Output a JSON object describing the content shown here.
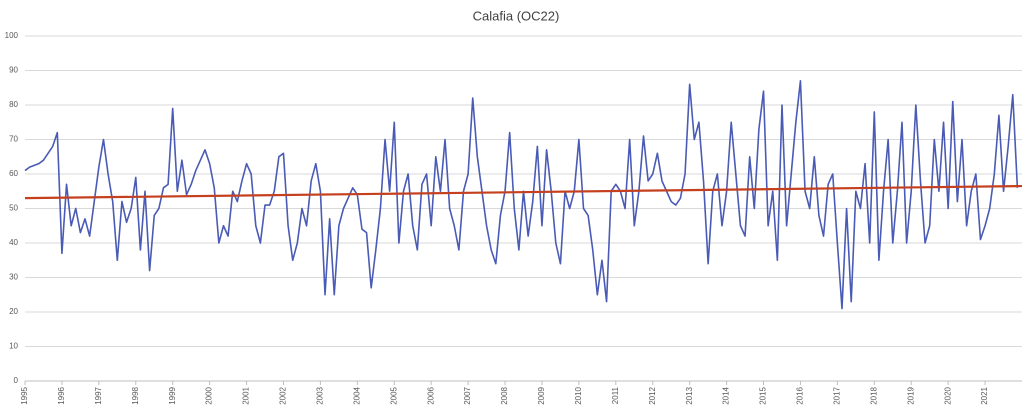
{
  "chart_data": {
    "type": "line",
    "title": "Calafia (OC22)",
    "xlim": [
      1995,
      2022
    ],
    "xticks": [
      1995,
      1996,
      1997,
      1998,
      1999,
      2000,
      2001,
      2002,
      2003,
      2004,
      2005,
      2006,
      2007,
      2008,
      2009,
      2010,
      2011,
      2012,
      2013,
      2014,
      2015,
      2016,
      2017,
      2018,
      2019,
      2020,
      2021
    ],
    "ylim": [
      0,
      100
    ],
    "yticks": [
      0,
      10,
      20,
      30,
      40,
      50,
      60,
      70,
      80,
      90,
      100
    ],
    "grid": true,
    "series": [
      {
        "color": "#4a5bb5",
        "x": [
          1995,
          1995.125,
          1995.25,
          1995.375,
          1995.5,
          1995.625,
          1995.75,
          1995.875,
          1996,
          1996.125,
          1996.25,
          1996.375,
          1996.5,
          1996.625,
          1996.75,
          1996.875,
          1997,
          1997.125,
          1997.25,
          1997.375,
          1997.5,
          1997.625,
          1997.75,
          1997.875,
          1998,
          1998.125,
          1998.25,
          1998.375,
          1998.5,
          1998.625,
          1998.75,
          1998.875,
          1999,
          1999.125,
          1999.25,
          1999.375,
          1999.5,
          1999.625,
          1999.75,
          1999.875,
          2000,
          2000.125,
          2000.25,
          2000.375,
          2000.5,
          2000.625,
          2000.75,
          2000.875,
          2001,
          2001.125,
          2001.25,
          2001.375,
          2001.5,
          2001.625,
          2001.75,
          2001.875,
          2002,
          2002.125,
          2002.25,
          2002.375,
          2002.5,
          2002.625,
          2002.75,
          2002.875,
          2003,
          2003.125,
          2003.25,
          2003.375,
          2003.5,
          2003.625,
          2003.75,
          2003.875,
          2004,
          2004.125,
          2004.25,
          2004.375,
          2004.5,
          2004.625,
          2004.75,
          2004.875,
          2005,
          2005.125,
          2005.25,
          2005.375,
          2005.5,
          2005.625,
          2005.75,
          2005.875,
          2006,
          2006.125,
          2006.25,
          2006.375,
          2006.5,
          2006.625,
          2006.75,
          2006.875,
          2007,
          2007.125,
          2007.25,
          2007.375,
          2007.5,
          2007.625,
          2007.75,
          2007.875,
          2008,
          2008.125,
          2008.25,
          2008.375,
          2008.5,
          2008.625,
          2008.75,
          2008.875,
          2009,
          2009.125,
          2009.25,
          2009.375,
          2009.5,
          2009.625,
          2009.75,
          2009.875,
          2010,
          2010.125,
          2010.25,
          2010.375,
          2010.5,
          2010.625,
          2010.75,
          2010.875,
          2011,
          2011.125,
          2011.25,
          2011.375,
          2011.5,
          2011.625,
          2011.75,
          2011.875,
          2012,
          2012.125,
          2012.25,
          2012.375,
          2012.5,
          2012.625,
          2012.75,
          2012.875,
          2013,
          2013.125,
          2013.25,
          2013.375,
          2013.5,
          2013.625,
          2013.75,
          2013.875,
          2014,
          2014.125,
          2014.25,
          2014.375,
          2014.5,
          2014.625,
          2014.75,
          2014.875,
          2015,
          2015.125,
          2015.25,
          2015.375,
          2015.5,
          2015.625,
          2015.75,
          2015.875,
          2016,
          2016.125,
          2016.25,
          2016.375,
          2016.5,
          2016.625,
          2016.75,
          2016.875,
          2017,
          2017.125,
          2017.25,
          2017.375,
          2017.5,
          2017.625,
          2017.75,
          2017.875,
          2018,
          2018.125,
          2018.25,
          2018.375,
          2018.5,
          2018.625,
          2018.75,
          2018.875,
          2019,
          2019.125,
          2019.25,
          2019.375,
          2019.5,
          2019.625,
          2019.75,
          2019.875,
          2020,
          2020.125,
          2020.25,
          2020.375,
          2020.5,
          2020.625,
          2020.75,
          2020.875,
          2021,
          2021.125,
          2021.25,
          2021.375,
          2021.5,
          2021.625,
          2021.75,
          2021.875
        ],
        "values": [
          61,
          62,
          62.5,
          63,
          64,
          66,
          68,
          72,
          37,
          57,
          45,
          50,
          43,
          47,
          42,
          52,
          62,
          70,
          60,
          52,
          35,
          52,
          46,
          50,
          59,
          38,
          55,
          32,
          48,
          50,
          56,
          57,
          79,
          55,
          64,
          54,
          57,
          61,
          64,
          67,
          63,
          56,
          40,
          45,
          42,
          55,
          52,
          58,
          63,
          60,
          45,
          40,
          51,
          51,
          55,
          65,
          66,
          45,
          35,
          40,
          50,
          45,
          58,
          63,
          55,
          25,
          47,
          25,
          45,
          50,
          53,
          56,
          54,
          44,
          43,
          27,
          38,
          50,
          70,
          55,
          75,
          40,
          55,
          60,
          45,
          38,
          57,
          60,
          45,
          65,
          55,
          70,
          50,
          45,
          38,
          55,
          60,
          82,
          65,
          55,
          45,
          38,
          34,
          48,
          55,
          72,
          50,
          38,
          55,
          42,
          52,
          68,
          45,
          67,
          55,
          40,
          34,
          55,
          50,
          55,
          70,
          50,
          48,
          38,
          25,
          35,
          23,
          55,
          57,
          55,
          50,
          70,
          45,
          55,
          71,
          58,
          60,
          66,
          58,
          55,
          52,
          51,
          53,
          60,
          86,
          70,
          75,
          58,
          34,
          55,
          60,
          45,
          55,
          75,
          60,
          45,
          42,
          65,
          50,
          73,
          84,
          45,
          55,
          35,
          80,
          45,
          60,
          75,
          87,
          55,
          50,
          65,
          48,
          42,
          57,
          60,
          40,
          21,
          50,
          23,
          55,
          50,
          63,
          40,
          78,
          35,
          55,
          70,
          40,
          55,
          75,
          40,
          55,
          80,
          58,
          40,
          45,
          70,
          55,
          75,
          50,
          81,
          52,
          70,
          45,
          55,
          60,
          41,
          45,
          50,
          60,
          77,
          55,
          68,
          83,
          56
        ]
      },
      {
        "color": "#c4401f",
        "x": [
          1995,
          2022
        ],
        "values": [
          53,
          56.5
        ]
      }
    ]
  }
}
